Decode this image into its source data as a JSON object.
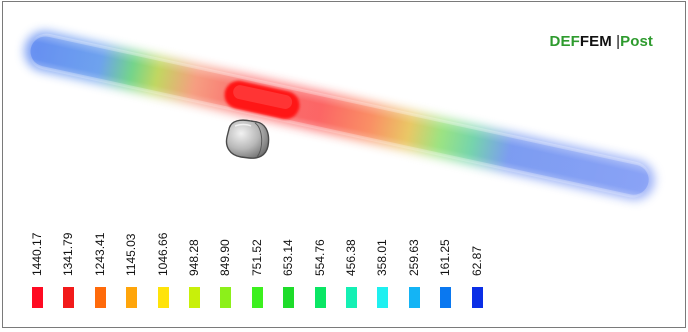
{
  "brand": {
    "part1": "DEF",
    "part2": "FEM",
    "separator": " |",
    "part3": "Post"
  },
  "colors": {
    "brand_green": "#2e9b2e",
    "hot_spot": "#ff1a1a",
    "sphere": "#c8c8c8"
  },
  "legend": {
    "items": [
      {
        "label": "1440.17",
        "color": "#ff0a22"
      },
      {
        "label": "1341.79",
        "color": "#f21a1a"
      },
      {
        "label": "1243.41",
        "color": "#ff6a0a"
      },
      {
        "label": "1145.03",
        "color": "#ffa50a"
      },
      {
        "label": "1046.66",
        "color": "#ffe30a"
      },
      {
        "label": "948.28",
        "color": "#c8f00a"
      },
      {
        "label": "849.90",
        "color": "#8cf01a"
      },
      {
        "label": "751.52",
        "color": "#3cf01e"
      },
      {
        "label": "653.14",
        "color": "#1edc2a"
      },
      {
        "label": "554.76",
        "color": "#0ae664"
      },
      {
        "label": "456.38",
        "color": "#14f0b4"
      },
      {
        "label": "358.01",
        "color": "#1ef0f0"
      },
      {
        "label": "259.63",
        "color": "#14b4f5"
      },
      {
        "label": "161.25",
        "color": "#0a78f0"
      },
      {
        "label": "62.87",
        "color": "#0a2ee6"
      }
    ]
  }
}
